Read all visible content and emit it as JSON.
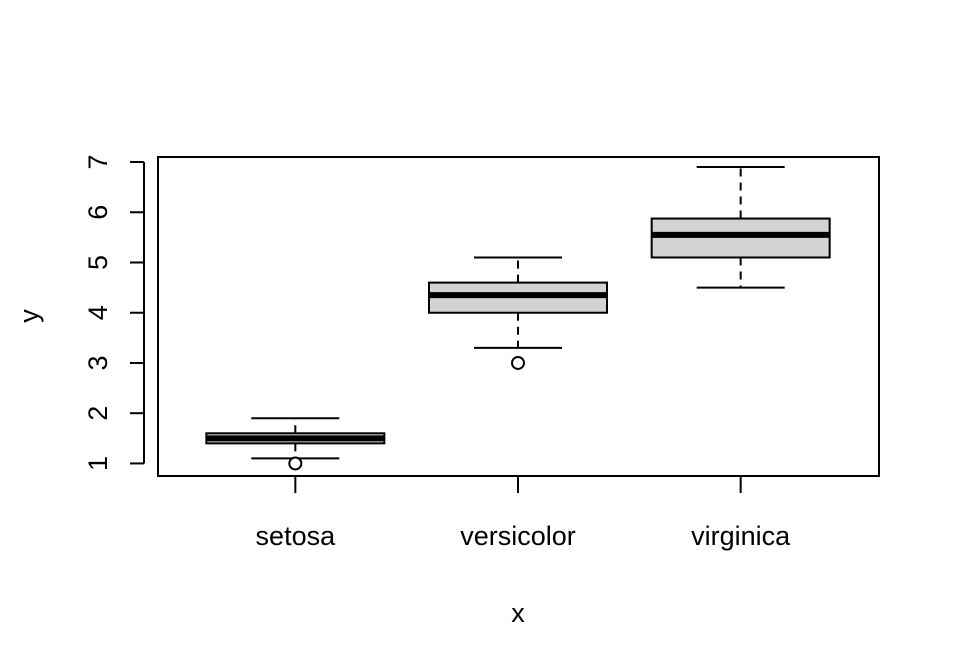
{
  "chart_data": {
    "type": "boxplot",
    "xlabel": "x",
    "ylabel": "y",
    "categories": [
      "setosa",
      "versicolor",
      "virginica"
    ],
    "ylim": [
      0.75,
      7.1
    ],
    "yticks": [
      "1",
      "2",
      "3",
      "4",
      "5",
      "6",
      "7"
    ],
    "box_fill": "#d3d3d3",
    "stroke": "#000000",
    "boxes": [
      {
        "category": "setosa",
        "whisker_low": 1.1,
        "q1": 1.4,
        "median": 1.5,
        "q3": 1.6,
        "whisker_high": 1.9,
        "outliers": [
          1.0
        ]
      },
      {
        "category": "versicolor",
        "whisker_low": 3.3,
        "q1": 4.0,
        "median": 4.35,
        "q3": 4.6,
        "whisker_high": 5.1,
        "outliers": [
          3.0
        ]
      },
      {
        "category": "virginica",
        "whisker_low": 4.5,
        "q1": 5.1,
        "median": 5.55,
        "q3": 5.875,
        "whisker_high": 6.9,
        "outliers": []
      }
    ]
  }
}
